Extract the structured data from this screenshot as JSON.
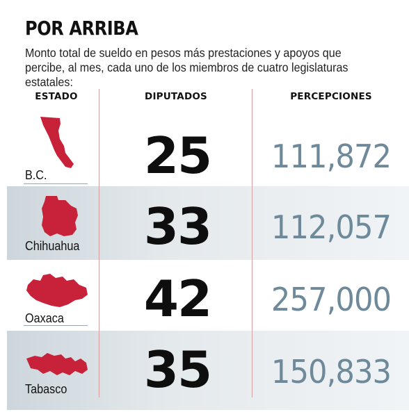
{
  "title": "POR ARRIBA",
  "subtitle": "Monto total de sueldo en pesos más prestaciones y apoyos que percibe, al mes, cada uno de los miembros de cuatro legislaturas estatales:",
  "colors": {
    "state_fill": "#c8223b",
    "perc_text": "#6e8a9a",
    "band": "#dfe5e9",
    "divider": "#d9a0a2"
  },
  "chart_data": {
    "type": "table",
    "columns": [
      "ESTADO",
      "DIPUTADOS",
      "PERCEPCIONES"
    ],
    "rows": [
      {
        "estado": "B.C.",
        "diputados": "25",
        "percepciones": "111,872",
        "icon": "baja-california-map-icon"
      },
      {
        "estado": "Chihuahua",
        "diputados": "33",
        "percepciones": "112,057",
        "icon": "chihuahua-map-icon"
      },
      {
        "estado": "Oaxaca",
        "diputados": "42",
        "percepciones": "257,000",
        "icon": "oaxaca-map-icon"
      },
      {
        "estado": "Tabasco",
        "diputados": "35",
        "percepciones": "150,833",
        "icon": "tabasco-map-icon"
      }
    ]
  }
}
